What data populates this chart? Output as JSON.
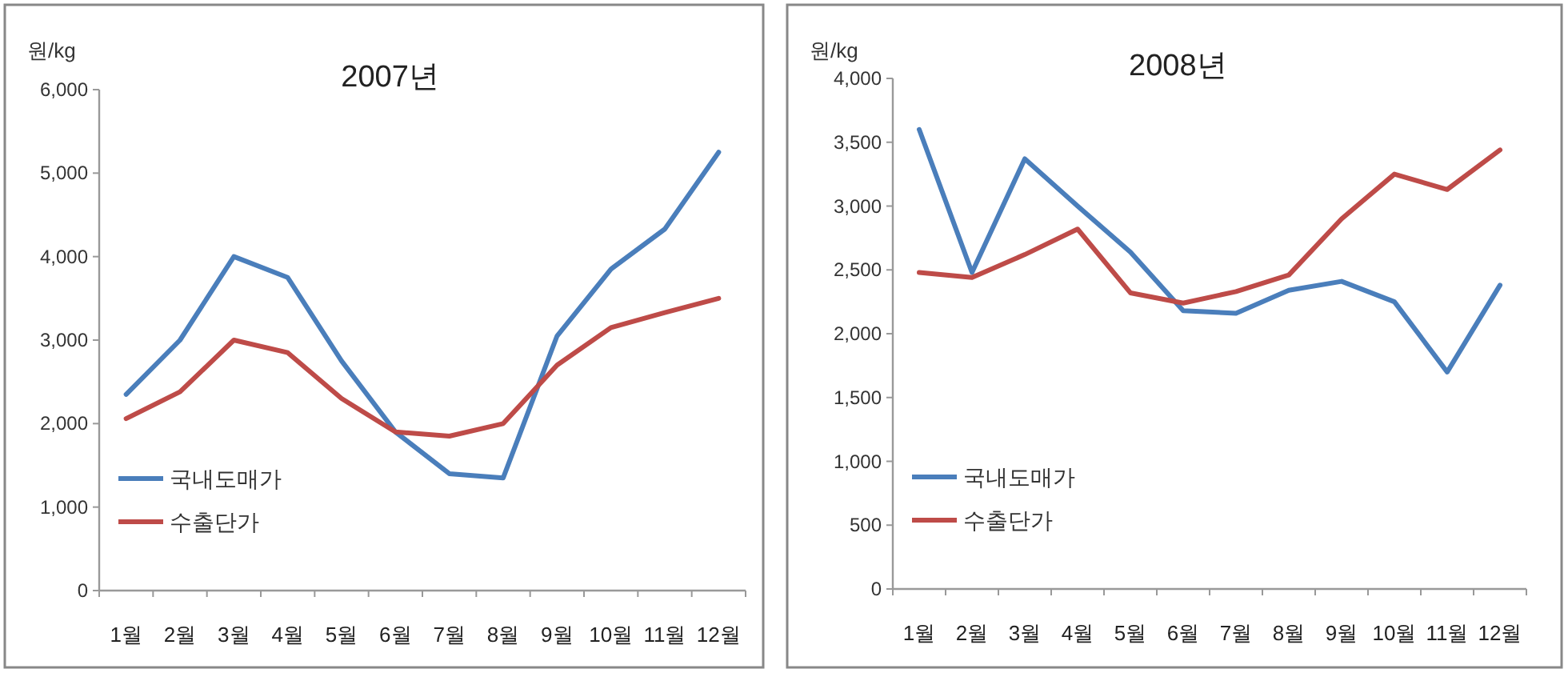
{
  "chart_data": [
    {
      "type": "line",
      "title": "2007년",
      "ylabel": "원/kg",
      "categories": [
        "1월",
        "2월",
        "3월",
        "4월",
        "5월",
        "6월",
        "7월",
        "8월",
        "9월",
        "10월",
        "11월",
        "12월"
      ],
      "series": [
        {
          "name": "국내도매가",
          "color": "#4a7ebb",
          "values": [
            2350,
            3000,
            4000,
            3750,
            2750,
            1900,
            1400,
            1350,
            3050,
            3850,
            4330,
            5250
          ]
        },
        {
          "name": "수출단가",
          "color": "#be4b48",
          "values": [
            2060,
            2380,
            3000,
            2850,
            2300,
            1900,
            1850,
            2000,
            2700,
            3150,
            3330,
            3500
          ]
        }
      ],
      "ylim": [
        0,
        6000
      ],
      "yticks": [
        0,
        {
          "value": 1000,
          "label": "1,000"
        },
        {
          "value": 2000,
          "label": "2,000"
        },
        {
          "value": 3000,
          "label": "3,000"
        },
        {
          "value": 4000,
          "label": "4,000"
        },
        {
          "value": 5000,
          "label": "5,000"
        },
        {
          "value": 6000,
          "label": "6,000"
        }
      ],
      "legend": "bottom left",
      "line_style": "solid"
    },
    {
      "type": "line",
      "title": "2008년",
      "ylabel": "원/kg",
      "categories": [
        "1월",
        "2월",
        "3월",
        "4월",
        "5월",
        "6월",
        "7월",
        "8월",
        "9월",
        "10월",
        "11월",
        "12월"
      ],
      "series": [
        {
          "name": "국내도매가",
          "color": "#4a7ebb",
          "values": [
            3600,
            2480,
            3370,
            3000,
            2640,
            2180,
            2160,
            2340,
            2410,
            2250,
            1700,
            2380
          ]
        },
        {
          "name": "수출단가",
          "color": "#be4b48",
          "values": [
            2480,
            2440,
            2620,
            2820,
            2320,
            2240,
            2330,
            2460,
            2900,
            3250,
            3130,
            3440
          ]
        }
      ],
      "ylim": [
        0,
        4000
      ],
      "yticks": [
        0,
        {
          "value": 500,
          "label": "500"
        },
        {
          "value": 1000,
          "label": "1,000"
        },
        {
          "value": 1500,
          "label": "1,500"
        },
        {
          "value": 2000,
          "label": "2,000"
        },
        {
          "value": 2500,
          "label": "2,500"
        },
        {
          "value": 3000,
          "label": "3,000"
        },
        {
          "value": 3500,
          "label": "3,500"
        },
        {
          "value": 4000,
          "label": "4,000"
        }
      ],
      "legend": "bottom left",
      "line_style": "solid"
    }
  ]
}
